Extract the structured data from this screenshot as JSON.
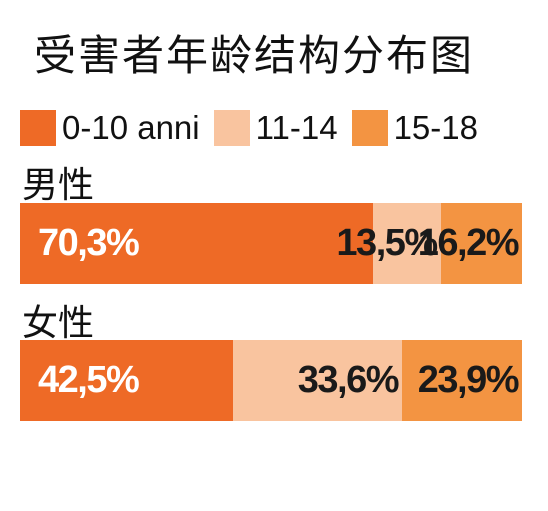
{
  "title": "受害者年龄结构分布图",
  "colors": {
    "c0": "#ee6a26",
    "c1": "#f9c49f",
    "c2": "#f39442"
  },
  "chart_data": {
    "type": "bar",
    "orientation": "horizontal",
    "stacked": "100%",
    "title": "受害者年龄结构分布图",
    "legend": [
      "0-10 anni",
      "11-14",
      "15-18"
    ],
    "legend_position": "top-left",
    "categories": [
      "男性",
      "女性"
    ],
    "series": [
      {
        "name": "0-10 anni",
        "values": [
          70.3,
          42.5
        ],
        "labels": [
          "70,3%",
          "42,5%"
        ]
      },
      {
        "name": "11-14",
        "values": [
          13.5,
          33.6
        ],
        "labels": [
          "13,5%",
          "33,6%"
        ]
      },
      {
        "name": "15-18",
        "values": [
          16.2,
          23.9
        ],
        "labels": [
          "16,2%",
          "23,9%"
        ]
      }
    ],
    "grid": false
  }
}
